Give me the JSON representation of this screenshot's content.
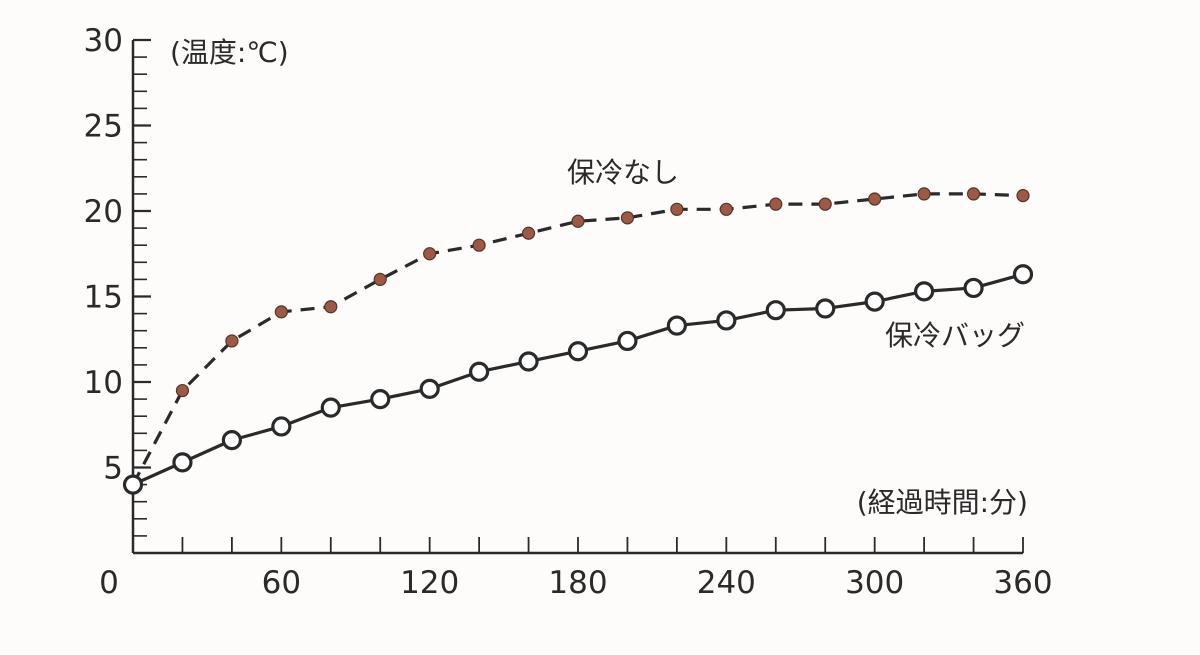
{
  "chart_data": {
    "type": "line",
    "title": "",
    "xlabel": "(経過時間:分)",
    "ylabel": "(温度:℃)",
    "xlim": [
      0,
      360
    ],
    "ylim": [
      0,
      30
    ],
    "x_ticks": [
      0,
      60,
      120,
      180,
      240,
      300,
      360
    ],
    "y_ticks": [
      5,
      10,
      15,
      20,
      25,
      30
    ],
    "x_minor_step": 20,
    "y_minor_step": 1,
    "grid": false,
    "legend": "inline labels",
    "series": [
      {
        "name": "保冷なし",
        "style": "dashed",
        "marker": "filled-dot",
        "color": "#2a2a2a",
        "marker_color": "#9b5a45",
        "x": [
          0,
          20,
          40,
          60,
          80,
          100,
          120,
          140,
          160,
          180,
          200,
          220,
          240,
          260,
          280,
          300,
          320,
          340,
          360
        ],
        "y": [
          4,
          9.5,
          12.4,
          14.1,
          14.4,
          16,
          17.5,
          18,
          18.7,
          19.4,
          19.6,
          20.1,
          20.1,
          20.4,
          20.4,
          20.7,
          21,
          21,
          20.9
        ]
      },
      {
        "name": "保冷バッグ",
        "style": "solid",
        "marker": "open-circle",
        "color": "#2a2a2a",
        "marker_color": "#ffffff",
        "x": [
          0,
          20,
          40,
          60,
          80,
          100,
          120,
          140,
          160,
          180,
          200,
          220,
          240,
          260,
          280,
          300,
          320,
          340,
          360
        ],
        "y": [
          4,
          5.3,
          6.6,
          7.4,
          8.5,
          9,
          9.6,
          10.6,
          11.2,
          11.8,
          12.4,
          13.3,
          13.6,
          14.2,
          14.3,
          14.7,
          15.3,
          15.5,
          16.3
        ]
      }
    ]
  }
}
